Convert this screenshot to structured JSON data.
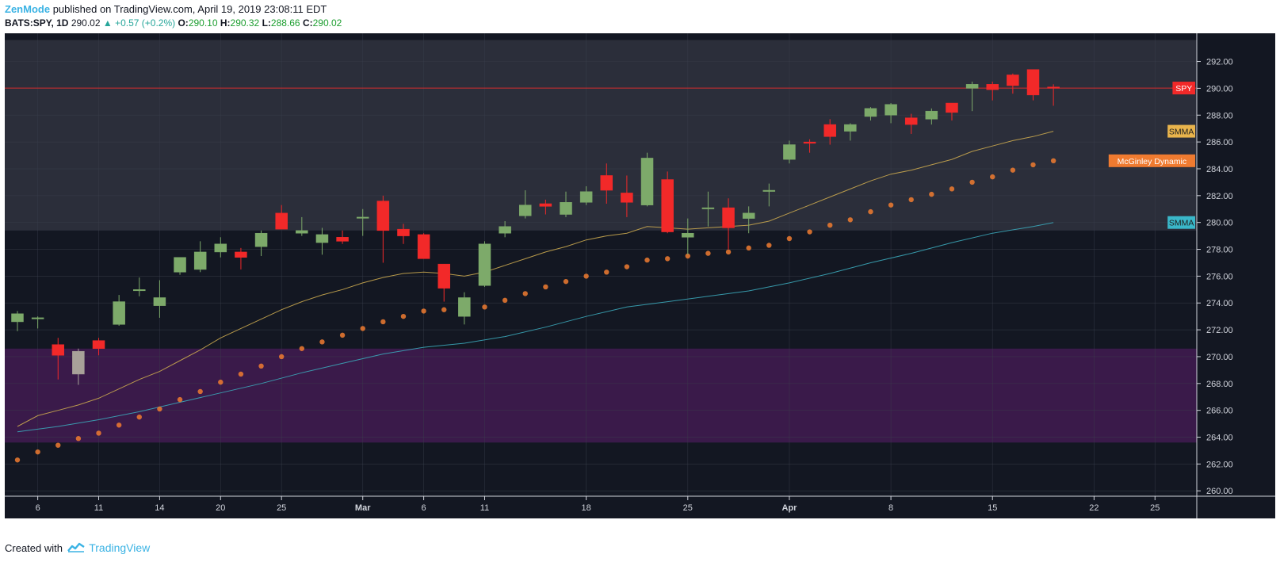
{
  "header": {
    "author": "ZenMode",
    "published_text": "published on TradingView.com, April 19, 2019 23:08:11 EDT",
    "symbol": "BATS:SPY, 1D",
    "last": "290.02",
    "change": "▲ +0.57 (+0.2%)",
    "o_label": "O:",
    "o_value": "290.10",
    "h_label": "H:",
    "h_value": "290.32",
    "l_label": "L:",
    "l_value": "288.66",
    "c_label": "C:",
    "c_value": "290.02"
  },
  "footer": {
    "created_with": "Created with",
    "brand": "TradingView"
  },
  "colors": {
    "background": "#131722",
    "up": "#7daa6a",
    "down": "#f22929",
    "neutral": "#a8a199",
    "upper_zone": "#2b2e3a",
    "lower_zone": "#3a1a4a",
    "smma_fast": "#c9a74f",
    "smma_slow": "#3ba6b8",
    "mcginley": "#f07b30",
    "price_line": "#f22929"
  },
  "chart_data": {
    "type": "candlestick",
    "symbol": "SPY",
    "timeframe": "1D",
    "ylim": [
      259.6,
      294.1
    ],
    "y_ticks": [
      "292.00",
      "290.00",
      "288.00",
      "286.00",
      "284.00",
      "282.00",
      "280.00",
      "278.00",
      "276.00",
      "274.00",
      "272.00",
      "270.00",
      "268.00",
      "266.00",
      "264.00",
      "262.00",
      "260.00"
    ],
    "x_ticks": [
      {
        "index": 1,
        "label": "6"
      },
      {
        "index": 4,
        "label": "11"
      },
      {
        "index": 7,
        "label": "14"
      },
      {
        "index": 10,
        "label": "20"
      },
      {
        "index": 13,
        "label": "25"
      },
      {
        "index": 17,
        "label": "Mar"
      },
      {
        "index": 20,
        "label": "6"
      },
      {
        "index": 23,
        "label": "11"
      },
      {
        "index": 28,
        "label": "18"
      },
      {
        "index": 33,
        "label": "25"
      },
      {
        "index": 38,
        "label": "Apr"
      },
      {
        "index": 43,
        "label": "8"
      },
      {
        "index": 48,
        "label": "15"
      },
      {
        "index": 53,
        "label": "22"
      },
      {
        "index": 56,
        "label": "25"
      }
    ],
    "candles": [
      {
        "o": 272.6,
        "h": 273.4,
        "l": 271.9,
        "c": 273.2
      },
      {
        "o": 272.9,
        "h": 273.0,
        "l": 272.1,
        "c": 272.9
      },
      {
        "o": 270.9,
        "h": 271.4,
        "l": 268.3,
        "c": 270.1
      },
      {
        "o": 268.7,
        "h": 270.6,
        "l": 267.9,
        "c": 270.4
      },
      {
        "o": 271.2,
        "h": 271.4,
        "l": 270.1,
        "c": 270.6
      },
      {
        "o": 272.4,
        "h": 274.6,
        "l": 272.3,
        "c": 274.1
      },
      {
        "o": 275.0,
        "h": 275.9,
        "l": 274.5,
        "c": 275.0
      },
      {
        "o": 273.8,
        "h": 275.7,
        "l": 272.9,
        "c": 274.4
      },
      {
        "o": 276.3,
        "h": 277.4,
        "l": 276.1,
        "c": 277.4
      },
      {
        "o": 276.5,
        "h": 278.6,
        "l": 276.3,
        "c": 277.8
      },
      {
        "o": 277.8,
        "h": 278.9,
        "l": 277.4,
        "c": 278.4
      },
      {
        "o": 277.8,
        "h": 278.1,
        "l": 276.5,
        "c": 277.4
      },
      {
        "o": 278.2,
        "h": 279.4,
        "l": 277.5,
        "c": 279.2
      },
      {
        "o": 280.7,
        "h": 281.3,
        "l": 279.5,
        "c": 279.5
      },
      {
        "o": 279.2,
        "h": 280.4,
        "l": 279.0,
        "c": 279.4
      },
      {
        "o": 278.5,
        "h": 279.6,
        "l": 277.6,
        "c": 279.1
      },
      {
        "o": 278.9,
        "h": 279.4,
        "l": 278.4,
        "c": 278.6
      },
      {
        "o": 280.4,
        "h": 281.0,
        "l": 279.0,
        "c": 280.4
      },
      {
        "o": 281.6,
        "h": 282.0,
        "l": 277.0,
        "c": 279.4
      },
      {
        "o": 279.5,
        "h": 279.9,
        "l": 278.4,
        "c": 279.0
      },
      {
        "o": 279.1,
        "h": 279.2,
        "l": 277.3,
        "c": 277.3
      },
      {
        "o": 276.9,
        "h": 276.9,
        "l": 274.1,
        "c": 275.1
      },
      {
        "o": 273.0,
        "h": 274.8,
        "l": 272.4,
        "c": 274.4
      },
      {
        "o": 275.3,
        "h": 278.6,
        "l": 275.2,
        "c": 278.4
      },
      {
        "o": 279.2,
        "h": 280.1,
        "l": 278.9,
        "c": 279.7
      },
      {
        "o": 280.5,
        "h": 282.4,
        "l": 280.3,
        "c": 281.3
      },
      {
        "o": 281.4,
        "h": 281.7,
        "l": 280.6,
        "c": 281.2
      },
      {
        "o": 280.6,
        "h": 282.3,
        "l": 280.4,
        "c": 281.5
      },
      {
        "o": 281.5,
        "h": 282.7,
        "l": 281.3,
        "c": 282.3
      },
      {
        "o": 283.5,
        "h": 284.4,
        "l": 281.4,
        "c": 282.4
      },
      {
        "o": 282.2,
        "h": 283.5,
        "l": 280.4,
        "c": 281.5
      },
      {
        "o": 281.3,
        "h": 285.2,
        "l": 281.2,
        "c": 284.8
      },
      {
        "o": 283.2,
        "h": 283.8,
        "l": 279.2,
        "c": 279.3
      },
      {
        "o": 278.9,
        "h": 280.3,
        "l": 277.6,
        "c": 279.2
      },
      {
        "o": 281.1,
        "h": 282.3,
        "l": 279.7,
        "c": 281.1
      },
      {
        "o": 281.1,
        "h": 281.8,
        "l": 278.0,
        "c": 279.6
      },
      {
        "o": 280.3,
        "h": 281.2,
        "l": 279.2,
        "c": 280.7
      },
      {
        "o": 282.4,
        "h": 282.9,
        "l": 281.2,
        "c": 282.4
      },
      {
        "o": 284.7,
        "h": 286.1,
        "l": 284.4,
        "c": 285.8
      },
      {
        "o": 286.0,
        "h": 286.2,
        "l": 285.2,
        "c": 285.9
      },
      {
        "o": 287.3,
        "h": 287.7,
        "l": 285.8,
        "c": 286.4
      },
      {
        "o": 286.8,
        "h": 287.4,
        "l": 286.1,
        "c": 287.3
      },
      {
        "o": 287.9,
        "h": 288.6,
        "l": 287.6,
        "c": 288.5
      },
      {
        "o": 288.0,
        "h": 288.9,
        "l": 287.4,
        "c": 288.8
      },
      {
        "o": 287.8,
        "h": 288.1,
        "l": 286.6,
        "c": 287.3
      },
      {
        "o": 287.7,
        "h": 288.5,
        "l": 287.3,
        "c": 288.3
      },
      {
        "o": 288.9,
        "h": 288.9,
        "l": 287.6,
        "c": 288.2
      },
      {
        "o": 290.0,
        "h": 290.5,
        "l": 288.3,
        "c": 290.3
      },
      {
        "o": 290.3,
        "h": 290.5,
        "l": 289.1,
        "c": 289.9
      },
      {
        "o": 291.0,
        "h": 291.1,
        "l": 289.6,
        "c": 290.2
      },
      {
        "o": 291.4,
        "h": 291.4,
        "l": 289.1,
        "c": 289.5
      },
      {
        "o": 290.1,
        "h": 290.3,
        "l": 288.7,
        "c": 290.0
      }
    ],
    "neutral_candle_index": 3,
    "series": [
      {
        "name": "SMMA",
        "label": "SMMA",
        "color": "#c9a74f",
        "points": [
          [
            0,
            264.8
          ],
          [
            1,
            265.6
          ],
          [
            2,
            266.0
          ],
          [
            3,
            266.4
          ],
          [
            4,
            266.9
          ],
          [
            5,
            267.6
          ],
          [
            6,
            268.3
          ],
          [
            7,
            268.9
          ],
          [
            8,
            269.7
          ],
          [
            9,
            270.5
          ],
          [
            10,
            271.4
          ],
          [
            11,
            272.1
          ],
          [
            12,
            272.8
          ],
          [
            13,
            273.5
          ],
          [
            14,
            274.1
          ],
          [
            15,
            274.6
          ],
          [
            16,
            275.0
          ],
          [
            17,
            275.5
          ],
          [
            18,
            275.9
          ],
          [
            19,
            276.2
          ],
          [
            20,
            276.3
          ],
          [
            21,
            276.2
          ],
          [
            22,
            276.0
          ],
          [
            23,
            276.3
          ],
          [
            24,
            276.8
          ],
          [
            25,
            277.3
          ],
          [
            26,
            277.8
          ],
          [
            27,
            278.2
          ],
          [
            28,
            278.7
          ],
          [
            29,
            279.0
          ],
          [
            30,
            279.2
          ],
          [
            31,
            279.7
          ],
          [
            32,
            279.6
          ],
          [
            33,
            279.5
          ],
          [
            34,
            279.6
          ],
          [
            35,
            279.7
          ],
          [
            36,
            279.8
          ],
          [
            37,
            280.1
          ],
          [
            38,
            280.7
          ],
          [
            39,
            281.3
          ],
          [
            40,
            281.9
          ],
          [
            41,
            282.5
          ],
          [
            42,
            283.1
          ],
          [
            43,
            283.6
          ],
          [
            44,
            283.9
          ],
          [
            45,
            284.3
          ],
          [
            46,
            284.7
          ],
          [
            47,
            285.3
          ],
          [
            48,
            285.7
          ],
          [
            49,
            286.1
          ],
          [
            50,
            286.4
          ],
          [
            51,
            286.8
          ]
        ]
      },
      {
        "name": "SMMA",
        "label": "SMMA",
        "color": "#3ba6b8",
        "points": [
          [
            0,
            264.4
          ],
          [
            2,
            264.8
          ],
          [
            4,
            265.3
          ],
          [
            6,
            265.9
          ],
          [
            8,
            266.6
          ],
          [
            10,
            267.3
          ],
          [
            12,
            268.0
          ],
          [
            14,
            268.8
          ],
          [
            16,
            269.5
          ],
          [
            18,
            270.2
          ],
          [
            20,
            270.7
          ],
          [
            22,
            271.0
          ],
          [
            24,
            271.5
          ],
          [
            26,
            272.2
          ],
          [
            28,
            273.0
          ],
          [
            30,
            273.7
          ],
          [
            32,
            274.1
          ],
          [
            34,
            274.5
          ],
          [
            36,
            274.9
          ],
          [
            38,
            275.5
          ],
          [
            40,
            276.2
          ],
          [
            42,
            277.0
          ],
          [
            44,
            277.7
          ],
          [
            46,
            278.5
          ],
          [
            48,
            279.2
          ],
          [
            50,
            279.7
          ],
          [
            51,
            280.0
          ]
        ]
      },
      {
        "name": "McGinley Dynamic",
        "label": "McGinley Dynamic",
        "color": "#f07b30",
        "style": "dots",
        "points": [
          [
            0,
            262.3
          ],
          [
            1,
            262.9
          ],
          [
            2,
            263.4
          ],
          [
            3,
            263.9
          ],
          [
            4,
            264.3
          ],
          [
            5,
            264.9
          ],
          [
            6,
            265.5
          ],
          [
            7,
            266.1
          ],
          [
            8,
            266.8
          ],
          [
            9,
            267.4
          ],
          [
            10,
            268.1
          ],
          [
            11,
            268.7
          ],
          [
            12,
            269.3
          ],
          [
            13,
            270.0
          ],
          [
            14,
            270.6
          ],
          [
            15,
            271.1
          ],
          [
            16,
            271.6
          ],
          [
            17,
            272.1
          ],
          [
            18,
            272.6
          ],
          [
            19,
            273.0
          ],
          [
            20,
            273.4
          ],
          [
            21,
            273.5
          ],
          [
            22,
            273.3
          ],
          [
            23,
            273.7
          ],
          [
            24,
            274.2
          ],
          [
            25,
            274.7
          ],
          [
            26,
            275.2
          ],
          [
            27,
            275.6
          ],
          [
            28,
            276.0
          ],
          [
            29,
            276.3
          ],
          [
            30,
            276.7
          ],
          [
            31,
            277.2
          ],
          [
            32,
            277.3
          ],
          [
            33,
            277.5
          ],
          [
            34,
            277.7
          ],
          [
            35,
            277.8
          ],
          [
            36,
            278.1
          ],
          [
            37,
            278.3
          ],
          [
            38,
            278.8
          ],
          [
            39,
            279.3
          ],
          [
            40,
            279.8
          ],
          [
            41,
            280.2
          ],
          [
            42,
            280.8
          ],
          [
            43,
            281.3
          ],
          [
            44,
            281.7
          ],
          [
            45,
            282.1
          ],
          [
            46,
            282.5
          ],
          [
            47,
            283.0
          ],
          [
            48,
            283.4
          ],
          [
            49,
            283.9
          ],
          [
            50,
            284.3
          ],
          [
            51,
            284.6
          ]
        ]
      }
    ],
    "zones": [
      {
        "from": 279.4,
        "to": 293.6,
        "color": "#2b2e3a"
      },
      {
        "from": 263.6,
        "to": 270.6,
        "color": "#3a1a4a"
      }
    ],
    "price_line": {
      "label": "SPY",
      "value": 290.02
    },
    "right_labels": [
      {
        "text": "SPY",
        "value": 290.02,
        "color": "#f22929"
      },
      {
        "text": "SMMA",
        "value": 286.8,
        "color": "#e9b44c"
      },
      {
        "text": "McGinley Dynamic",
        "value": 284.6,
        "color": "#f07b30"
      },
      {
        "text": "SMMA",
        "value": 280.0,
        "color": "#3ab7c9"
      }
    ]
  }
}
